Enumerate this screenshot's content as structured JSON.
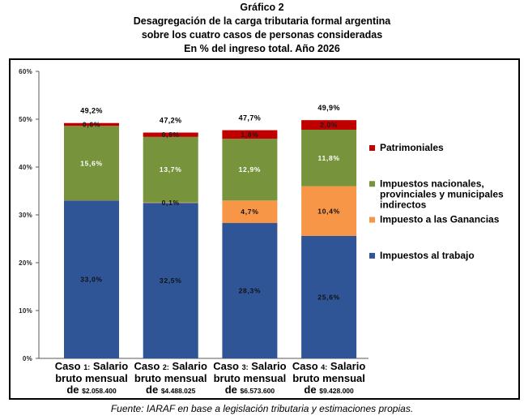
{
  "chart_data": {
    "type": "bar",
    "stacked": true,
    "figure_label": "Gráfico 2",
    "title": "Desagregación de la carga tributaria formal argentina\nsobre los cuatro casos de personas consideradas",
    "subtitle": "En % del ingreso total. Año 2026",
    "categories": [
      "Caso 1: Salario bruto mensual de $2.058.400",
      "Caso 2: Salario bruto mensual de $4.488.025",
      "Caso 3: Salario bruto mensual de $6.573.600",
      "Caso 4: Salario bruto mensual de $9.428.000"
    ],
    "series": [
      {
        "name": "Impuestos al trabajo",
        "color": "#2F5597",
        "label_color": "#111111",
        "values": [
          33.0,
          32.5,
          28.3,
          25.6
        ]
      },
      {
        "name": "Impuesto a las Ganancias",
        "color": "#F79646",
        "label_color": "#111111",
        "values": [
          null,
          0.1,
          4.7,
          10.4
        ]
      },
      {
        "name": "Impuestos nacionales, provinciales y municipales indirectos",
        "color": "#77933C",
        "label_color": "#FFFFFF",
        "values": [
          15.6,
          13.7,
          12.9,
          11.8
        ]
      },
      {
        "name": "Patrimoniales",
        "color": "#C00000",
        "label_color": "#1A1A1A",
        "values": [
          0.6,
          0.9,
          1.8,
          2.0
        ]
      }
    ],
    "totals": [
      49.2,
      47.2,
      47.7,
      49.9
    ],
    "value_unit": "%",
    "ylim": [
      0,
      60
    ],
    "yticks": [
      0,
      10,
      20,
      30,
      40,
      50,
      60
    ],
    "grid": false,
    "legend_position": "right",
    "source": "Fuente: IARAF en base a legislación tributaria y estimaciones propias."
  }
}
